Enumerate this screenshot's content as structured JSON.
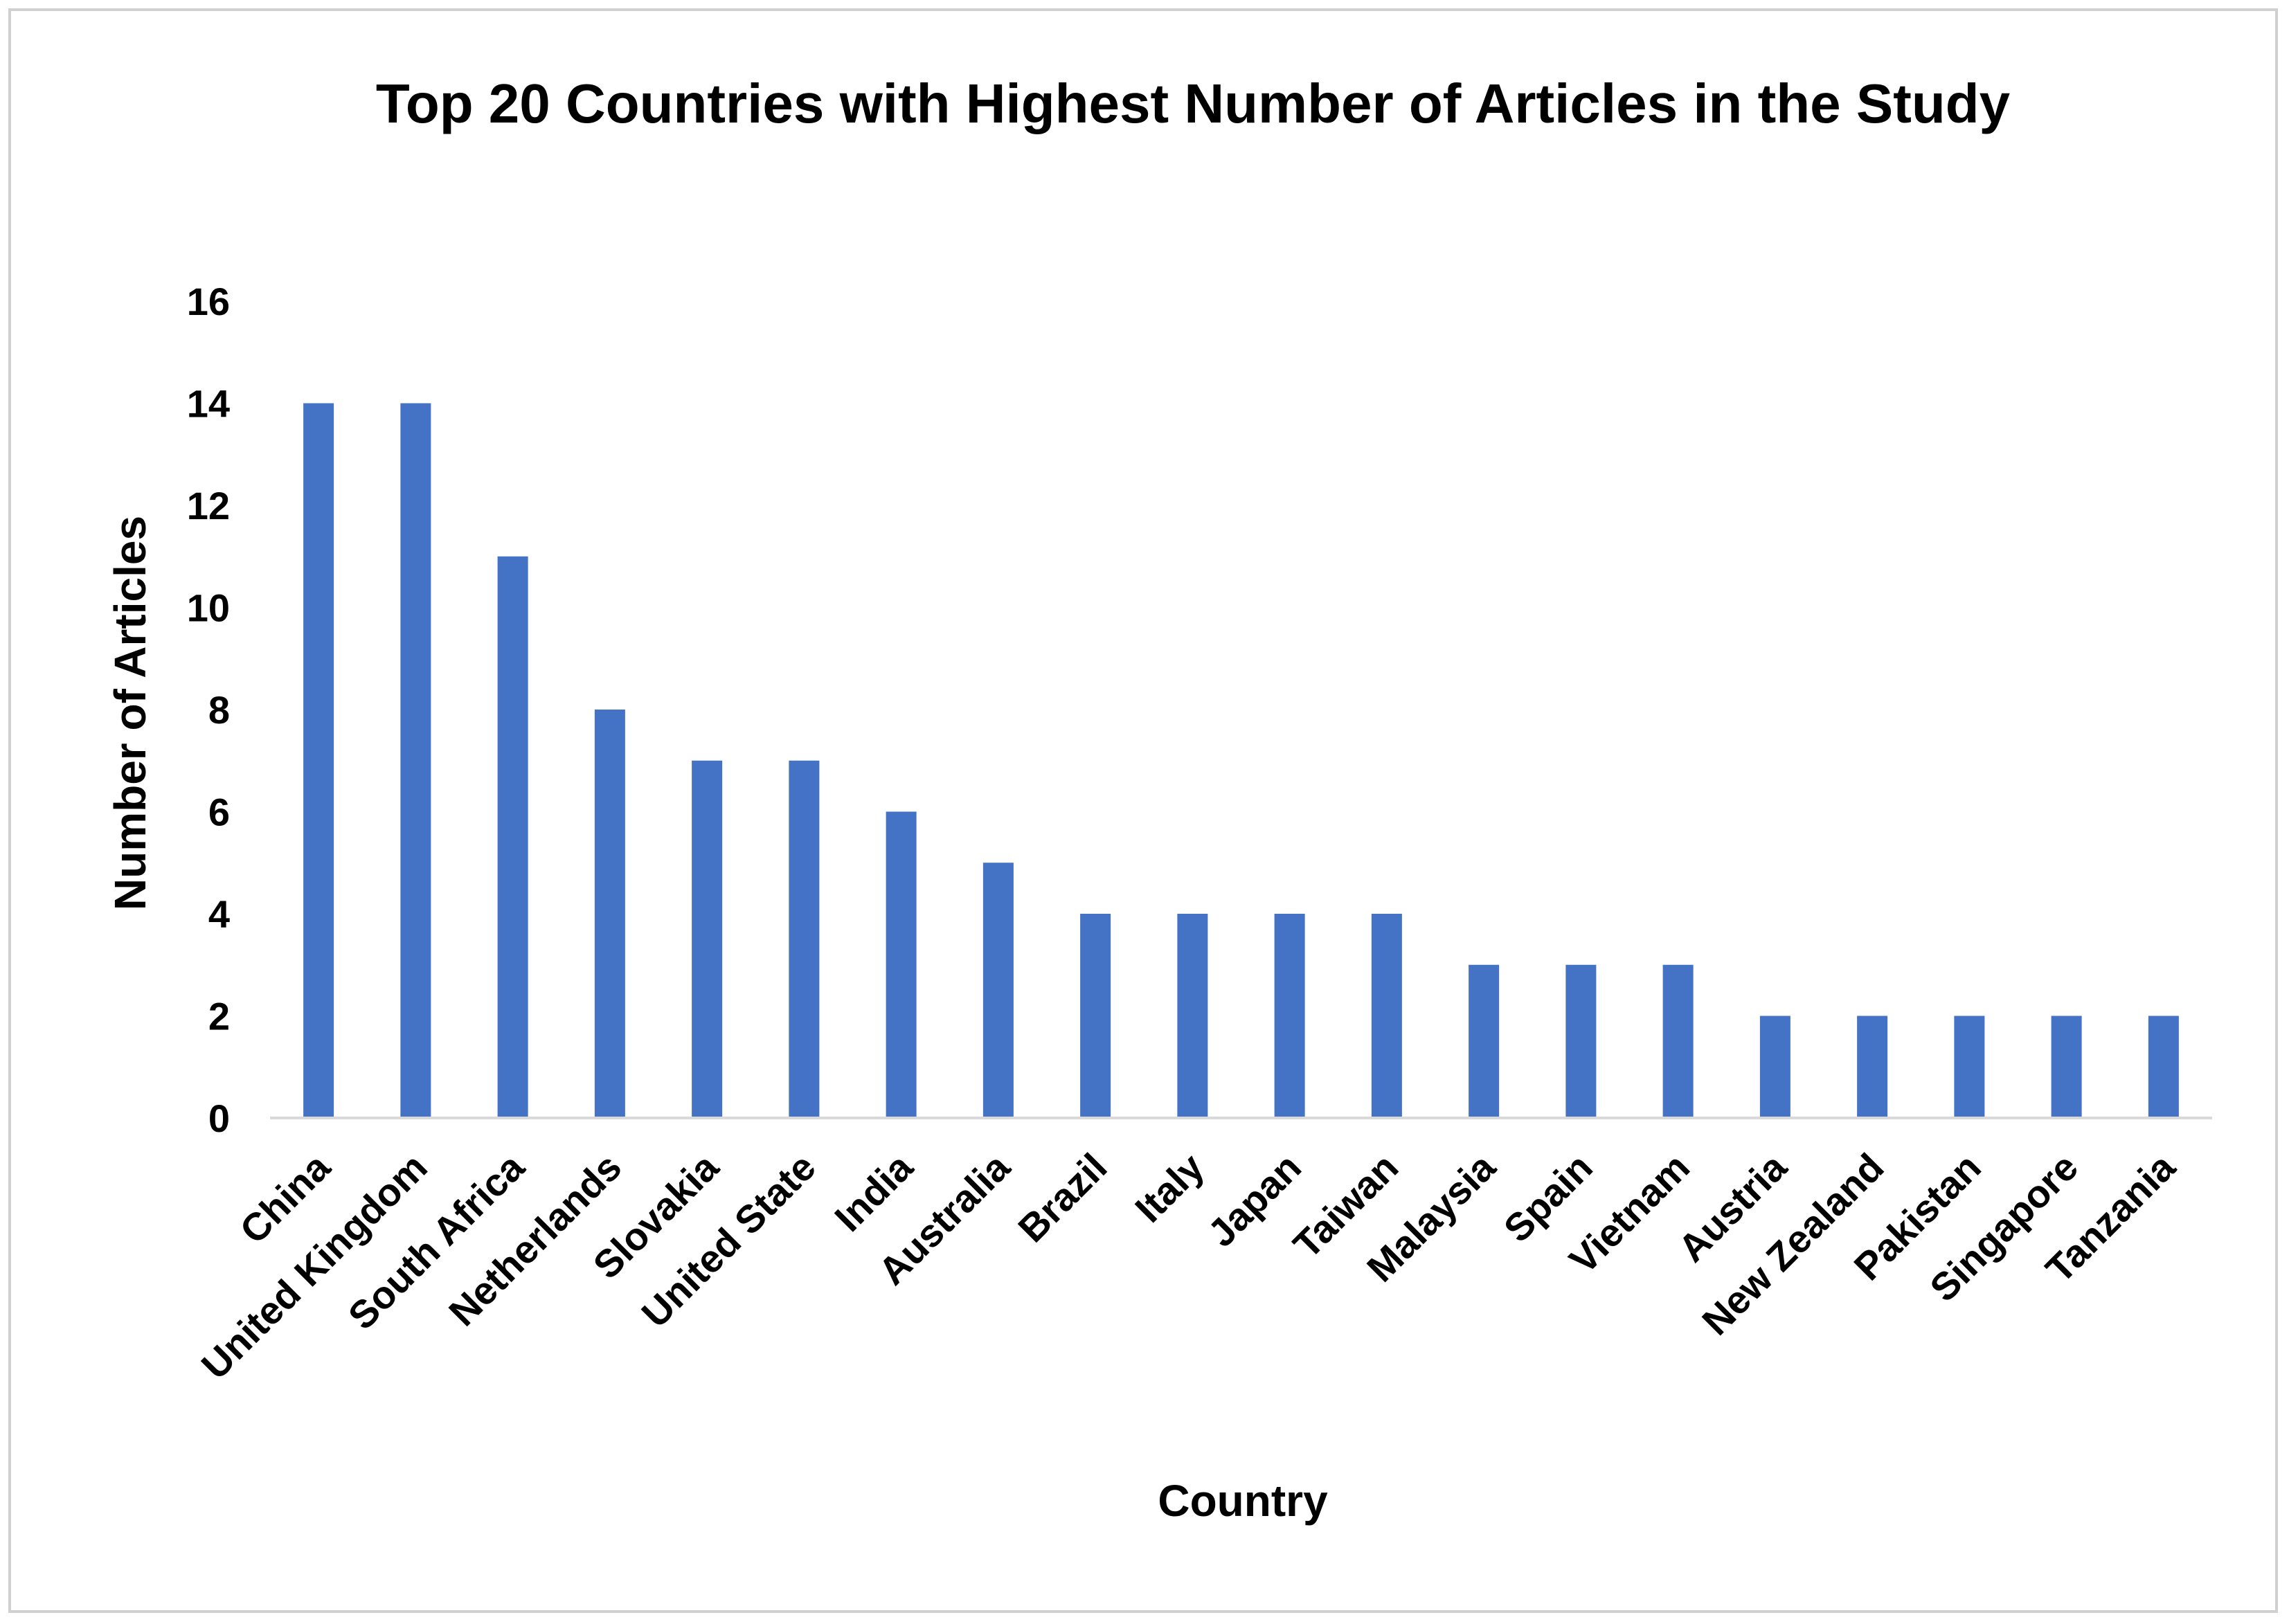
{
  "chart_data": {
    "type": "bar",
    "title": "Top 20 Countries with Highest Number of Articles in the Study",
    "xlabel": "Country",
    "ylabel": "Number of  Articles",
    "ylim": [
      0,
      16
    ],
    "yticks": [
      0,
      2,
      4,
      6,
      8,
      10,
      12,
      14,
      16
    ],
    "grid": false,
    "legend": "none",
    "bar_color": "#4472c4",
    "categories": [
      "China",
      "United Kingdom",
      "South Africa",
      "Netherlands",
      "Slovakia",
      "United State",
      "India",
      "Australia",
      "Brazil",
      "Italy",
      "Japan",
      "Taiwan",
      "Malaysia",
      "Spain",
      "Vietnam",
      "Austria",
      "New Zealand",
      "Pakistan",
      "Singapore",
      "Tanzania"
    ],
    "values": [
      14,
      14,
      11,
      8,
      7,
      7,
      6,
      5,
      4,
      4,
      4,
      4,
      3,
      3,
      3,
      2,
      2,
      2,
      2,
      2
    ]
  }
}
